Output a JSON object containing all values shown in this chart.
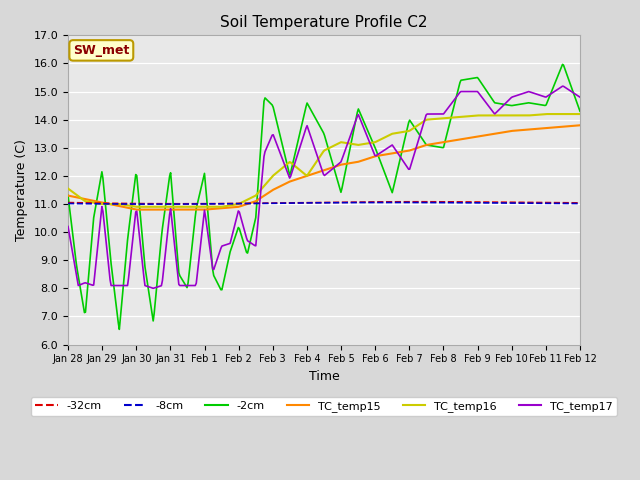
{
  "title": "Soil Temperature Profile C2",
  "xlabel": "Time",
  "ylabel": "Temperature (C)",
  "ylim": [
    6.0,
    17.0
  ],
  "yticks": [
    6.0,
    7.0,
    8.0,
    9.0,
    10.0,
    11.0,
    12.0,
    13.0,
    14.0,
    15.0,
    16.0,
    17.0
  ],
  "fig_bg_color": "#d8d8d8",
  "plot_bg_color": "#e8e8e8",
  "annotation_label": "SW_met",
  "annotation_color": "#8b0000",
  "annotation_bg": "#ffffcc",
  "legend_entries": [
    "-32cm",
    "-8cm",
    "-2cm",
    "TC_temp15",
    "TC_temp16",
    "TC_temp17"
  ],
  "line_colors": [
    "#dd0000",
    "#0000cc",
    "#00cc00",
    "#ff8800",
    "#cccc00",
    "#9900cc"
  ],
  "x_tick_labels": [
    "Jan 28",
    "Jan 29",
    "Jan 30",
    "Jan 31",
    "Feb 1",
    "Feb 2",
    "Feb 3",
    "Feb 4",
    "Feb 5",
    "Feb 6",
    "Feb 7",
    "Feb 8",
    "Feb 9",
    "Feb 10",
    "Feb 11",
    "Feb 12"
  ],
  "green_keypoints_x": [
    0,
    0.25,
    0.5,
    0.75,
    1.0,
    1.25,
    1.5,
    1.75,
    2.0,
    2.25,
    2.5,
    2.75,
    3.0,
    3.25,
    3.5,
    3.75,
    4.0,
    4.25,
    4.5,
    4.75,
    5.0,
    5.25,
    5.5,
    5.75,
    6.0,
    6.5,
    7.0,
    7.5,
    8.0,
    8.5,
    9.0,
    9.5,
    10.0,
    10.5,
    11.0,
    11.5,
    12.0,
    12.5,
    13.0,
    13.5,
    14.0,
    14.5,
    15.0
  ],
  "green_keypoints_y": [
    11.3,
    8.8,
    7.0,
    10.5,
    12.2,
    9.0,
    6.5,
    9.8,
    12.2,
    8.8,
    6.8,
    10.0,
    12.2,
    8.5,
    8.0,
    10.8,
    12.1,
    8.5,
    7.9,
    9.3,
    10.2,
    9.2,
    10.5,
    14.8,
    14.5,
    12.0,
    14.6,
    13.5,
    11.4,
    14.4,
    13.0,
    11.4,
    14.0,
    13.1,
    13.0,
    15.4,
    15.5,
    14.6,
    14.5,
    14.6,
    14.5,
    16.0,
    14.3
  ],
  "purple_keypoints_x": [
    0,
    0.3,
    0.5,
    0.75,
    1.0,
    1.25,
    1.5,
    1.75,
    2.0,
    2.25,
    2.5,
    2.75,
    3.0,
    3.25,
    3.5,
    3.75,
    4.0,
    4.25,
    4.5,
    4.75,
    5.0,
    5.25,
    5.5,
    5.75,
    6.0,
    6.5,
    7.0,
    7.5,
    8.0,
    8.5,
    9.0,
    9.5,
    10.0,
    10.5,
    11.0,
    11.5,
    12.0,
    12.5,
    13.0,
    13.5,
    14.0,
    14.5,
    15.0
  ],
  "purple_keypoints_y": [
    10.2,
    8.1,
    8.2,
    8.1,
    11.0,
    8.1,
    8.1,
    8.1,
    10.9,
    8.1,
    8.0,
    8.1,
    10.9,
    8.1,
    8.1,
    8.1,
    10.8,
    8.6,
    9.5,
    9.6,
    10.8,
    9.7,
    9.5,
    12.8,
    13.5,
    11.9,
    13.8,
    12.0,
    12.5,
    14.2,
    12.7,
    13.1,
    12.2,
    14.2,
    14.2,
    15.0,
    15.0,
    14.2,
    14.8,
    15.0,
    14.8,
    15.2,
    14.8
  ],
  "orange_keypoints_x": [
    0,
    1.0,
    2.0,
    3.0,
    4.0,
    5.0,
    5.5,
    6.0,
    6.5,
    7.0,
    7.5,
    8.0,
    8.5,
    9.0,
    9.5,
    10.0,
    10.5,
    11.0,
    11.5,
    12.0,
    12.5,
    13.0,
    13.5,
    14.0,
    14.5,
    15.0
  ],
  "orange_keypoints_y": [
    11.3,
    11.05,
    10.8,
    10.8,
    10.8,
    10.9,
    11.1,
    11.5,
    11.8,
    12.0,
    12.2,
    12.4,
    12.5,
    12.7,
    12.8,
    12.9,
    13.1,
    13.2,
    13.3,
    13.4,
    13.5,
    13.6,
    13.65,
    13.7,
    13.75,
    13.8
  ],
  "yellow_keypoints_x": [
    0,
    0.5,
    1.0,
    1.5,
    2.0,
    2.5,
    3.0,
    3.5,
    4.0,
    4.5,
    5.0,
    5.5,
    6.0,
    6.5,
    7.0,
    7.5,
    8.0,
    8.5,
    9.0,
    9.5,
    10.0,
    10.5,
    11.0,
    11.5,
    12.0,
    12.5,
    13.0,
    13.5,
    14.0,
    14.5,
    15.0
  ],
  "yellow_keypoints_y": [
    11.55,
    11.1,
    11.0,
    11.0,
    10.9,
    10.9,
    10.9,
    10.9,
    10.9,
    10.9,
    11.0,
    11.3,
    12.0,
    12.5,
    12.0,
    12.9,
    13.2,
    13.1,
    13.2,
    13.5,
    13.6,
    14.0,
    14.05,
    14.1,
    14.15,
    14.15,
    14.15,
    14.15,
    14.2,
    14.2,
    14.2
  ]
}
